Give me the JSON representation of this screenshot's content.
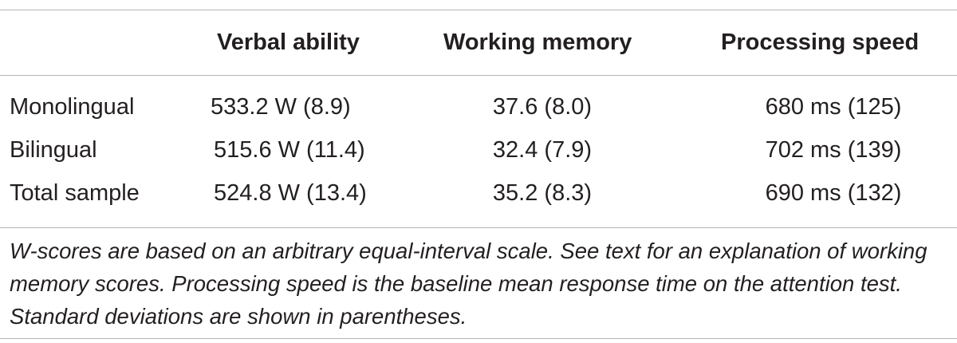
{
  "table": {
    "headers": [
      "",
      "Verbal ability",
      "Working memory",
      "Processing speed"
    ],
    "rows": [
      {
        "label": "Monolingual",
        "verbal": "533.2 W (8.9)",
        "memory": "37.6 (8.0)",
        "speed": "680 ms (125)"
      },
      {
        "label": "Bilingual",
        "verbal": "515.6 W (11.4)",
        "memory": "32.4 (7.9)",
        "speed": "702 ms (139)"
      },
      {
        "label": "Total sample",
        "verbal": "524.8 W (13.4)",
        "memory": "35.2 (8.3)",
        "speed": "690 ms (132)"
      }
    ],
    "footnote": "W-scores are based on an arbitrary equal-interval scale. See text for an explanation of working memory scores. Processing speed is the baseline mean response time on the attention test. Standard deviations are shown in parentheses."
  }
}
